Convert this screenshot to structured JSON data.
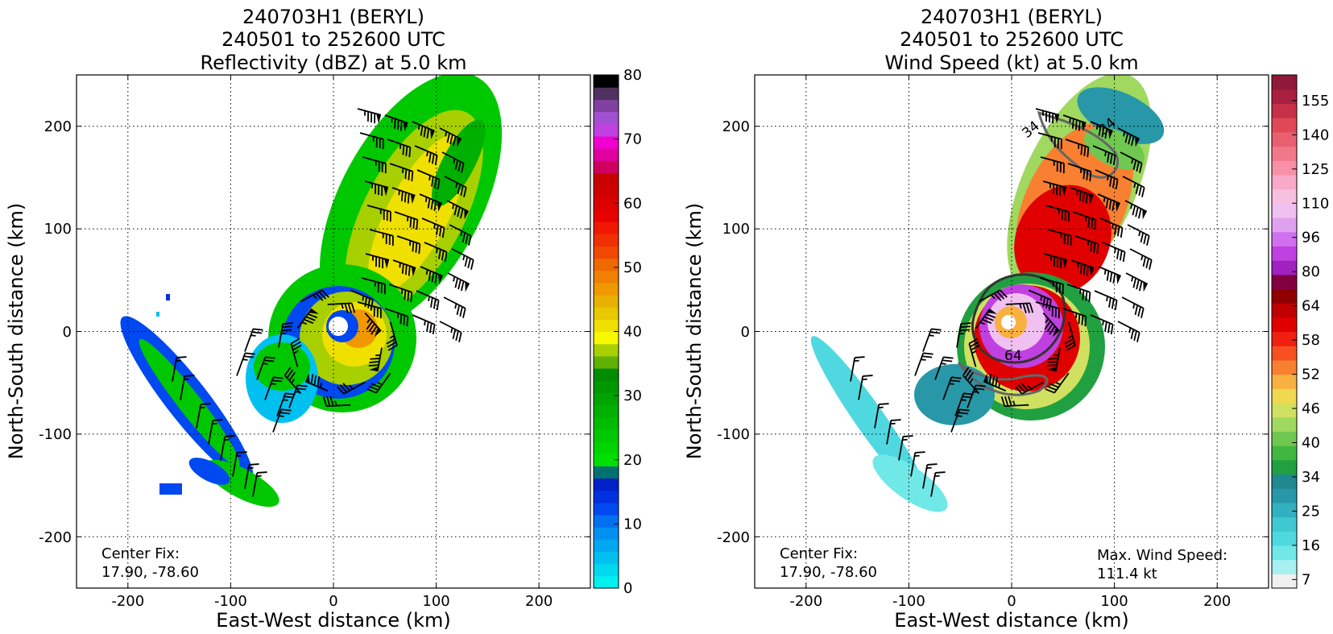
{
  "chart_data": [
    {
      "type": "heatmap",
      "title_lines": [
        "240703H1 (BERYL)",
        "240501 to 252600 UTC",
        "Reflectivity (dBZ) at 5.0 km"
      ],
      "xlabel": "East-West distance (km)",
      "ylabel": "North-South distance (km)",
      "xlim": [
        -250,
        250
      ],
      "ylim": [
        -250,
        250
      ],
      "xticks": [
        -200,
        -100,
        0,
        100,
        200
      ],
      "yticks": [
        -200,
        -100,
        0,
        100,
        200
      ],
      "grid": true,
      "annotations": [
        {
          "lines": [
            "Center Fix:",
            "17.90, -78.60"
          ],
          "position": "bottom-left"
        }
      ],
      "colorbar": {
        "min": 0,
        "max": 80,
        "ticks": [
          0,
          10,
          20,
          30,
          40,
          50,
          60,
          70,
          80
        ],
        "colors": [
          "#00f0f0",
          "#00d8f0",
          "#00c0f0",
          "#00a8f0",
          "#0090f0",
          "#0070f0",
          "#0048f0",
          "#0030e0",
          "#0020c8",
          "#007070",
          "#00e000",
          "#00d400",
          "#00c800",
          "#00bc00",
          "#00b000",
          "#00a400",
          "#009800",
          "#008c00",
          "#60b000",
          "#a8d000",
          "#f8f800",
          "#f0e000",
          "#e8c800",
          "#e8b000",
          "#f09800",
          "#f08000",
          "#f06800",
          "#f04800",
          "#f03000",
          "#f01800",
          "#e80000",
          "#dc0000",
          "#d00000",
          "#c80000",
          "#d00060",
          "#e000a0",
          "#f000d0",
          "#c040e0",
          "#a050d0",
          "#8040a0",
          "#503060",
          "#000000"
        ]
      }
    },
    {
      "type": "heatmap",
      "title_lines": [
        "240703H1 (BERYL)",
        "240501 to 252600 UTC",
        "Wind Speed (kt) at 5.0 km"
      ],
      "xlabel": "East-West distance (km)",
      "ylabel": "North-South distance (km)",
      "xlim": [
        -250,
        250
      ],
      "ylim": [
        -250,
        250
      ],
      "xticks": [
        -200,
        -100,
        0,
        100,
        200
      ],
      "yticks": [
        -200,
        -100,
        0,
        100,
        200
      ],
      "grid": true,
      "contour_labels": [
        "34",
        "34",
        "64"
      ],
      "annotations": [
        {
          "lines": [
            "Center Fix:",
            "17.90, -78.60"
          ],
          "position": "bottom-left"
        },
        {
          "lines": [
            "Max. Wind Speed:",
            "111.4 kt"
          ],
          "position": "bottom-right"
        }
      ],
      "colorbar": {
        "ticks": [
          7,
          16,
          25,
          34,
          40,
          46,
          52,
          58,
          64,
          80,
          96,
          110,
          125,
          140,
          155
        ],
        "colors": [
          "#f0f0f0",
          "#a8f0f0",
          "#70e8e8",
          "#50d8e0",
          "#40c8d0",
          "#30b0c0",
          "#2898a8",
          "#208890",
          "#20a040",
          "#40b840",
          "#70c850",
          "#a0d860",
          "#d0e060",
          "#f0d850",
          "#f8b040",
          "#f88030",
          "#f85020",
          "#f02010",
          "#e00000",
          "#c00000",
          "#900000",
          "#800040",
          "#a020c0",
          "#c040e0",
          "#d070f0",
          "#e0a0f0",
          "#f0c0f0",
          "#f8c0e0",
          "#f8a8c8",
          "#f890a8",
          "#f07888",
          "#e86070",
          "#e04858",
          "#c83048",
          "#a82040",
          "#901838"
        ]
      },
      "max_wind_speed_kt": 111.4
    }
  ]
}
